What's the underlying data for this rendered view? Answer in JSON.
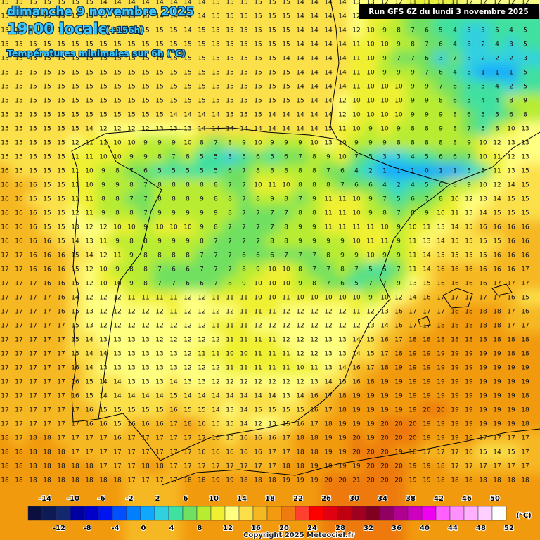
{
  "header": {
    "date": "dimanche 9 novembre 2025",
    "time": "19:00 locale",
    "lead": "(+156h)",
    "subtitle": "Températures minimales sur 6h (°C)",
    "run": "Run GFS 6Z du lundi 3 novembre 2025",
    "copyright": "Copyright 2025 Meteociel.fr"
  },
  "legend": {
    "unit": "(°C)",
    "colors": [
      "#0a0f40",
      "#0d1a55",
      "#14286e",
      "#0000a0",
      "#0000c8",
      "#0014f0",
      "#0050ff",
      "#0080ff",
      "#10a8ff",
      "#30d0e0",
      "#40e0a0",
      "#70e060",
      "#b8ec30",
      "#f0f030",
      "#ffff80",
      "#fbe04a",
      "#f6b820",
      "#f29a10",
      "#ee7a10",
      "#ff4030",
      "#ff0000",
      "#e00010",
      "#c00010",
      "#a00020",
      "#800020",
      "#900060",
      "#b00090",
      "#d000c0",
      "#f000f0",
      "#ff60ff",
      "#ff90ff",
      "#ffb0ff",
      "#ffd0ff",
      "#ffffff"
    ],
    "top_labels": [
      -14,
      -10,
      -6,
      -2,
      2,
      6,
      10,
      14,
      18,
      22,
      26,
      30,
      34,
      38,
      42,
      46,
      50
    ],
    "bottom_labels": [
      -12,
      -8,
      -4,
      0,
      4,
      8,
      12,
      16,
      20,
      24,
      28,
      32,
      36,
      40,
      44,
      48,
      52
    ]
  },
  "grid": {
    "rows": [
      [
        15,
        15,
        15,
        15,
        15,
        15,
        15,
        14,
        14,
        14,
        14,
        14,
        14,
        14,
        14,
        15,
        15,
        15,
        15,
        15,
        15,
        14,
        14,
        14,
        14,
        13,
        13,
        12,
        12,
        11,
        11,
        11,
        11,
        12,
        12,
        12,
        12,
        12
      ],
      [
        15,
        15,
        15,
        15,
        15,
        15,
        15,
        15,
        15,
        15,
        15,
        14,
        14,
        14,
        14,
        15,
        15,
        15,
        15,
        15,
        15,
        14,
        14,
        14,
        14,
        12,
        11,
        10,
        8,
        7,
        6,
        5,
        5,
        4,
        4,
        4,
        5,
        5
      ],
      [
        15,
        15,
        15,
        15,
        15,
        15,
        15,
        15,
        15,
        15,
        15,
        15,
        15,
        14,
        15,
        15,
        15,
        15,
        15,
        15,
        15,
        14,
        14,
        14,
        14,
        12,
        10,
        9,
        8,
        7,
        6,
        5,
        4,
        3,
        3,
        5,
        4,
        5
      ],
      [
        15,
        15,
        15,
        15,
        15,
        15,
        15,
        15,
        15,
        15,
        15,
        15,
        15,
        15,
        15,
        15,
        15,
        15,
        15,
        15,
        15,
        14,
        14,
        14,
        14,
        11,
        10,
        10,
        9,
        8,
        7,
        6,
        4,
        3,
        2,
        4,
        3,
        5
      ],
      [
        15,
        15,
        15,
        15,
        15,
        15,
        15,
        15,
        15,
        15,
        15,
        15,
        15,
        15,
        15,
        15,
        15,
        15,
        15,
        15,
        14,
        14,
        14,
        14,
        14,
        11,
        10,
        9,
        7,
        7,
        6,
        3,
        7,
        3,
        2,
        2,
        2,
        3
      ],
      [
        15,
        15,
        15,
        15,
        15,
        15,
        15,
        15,
        15,
        15,
        15,
        15,
        15,
        15,
        15,
        15,
        15,
        15,
        15,
        15,
        15,
        14,
        14,
        14,
        14,
        11,
        10,
        9,
        9,
        9,
        7,
        6,
        4,
        3,
        1,
        1,
        1,
        5
      ],
      [
        15,
        15,
        15,
        15,
        15,
        15,
        15,
        15,
        15,
        15,
        15,
        15,
        15,
        15,
        15,
        15,
        15,
        15,
        15,
        15,
        15,
        14,
        14,
        14,
        14,
        11,
        10,
        10,
        10,
        9,
        9,
        7,
        6,
        5,
        5,
        4,
        2,
        5
      ],
      [
        15,
        15,
        15,
        15,
        15,
        15,
        15,
        15,
        15,
        15,
        15,
        15,
        15,
        15,
        15,
        15,
        15,
        15,
        15,
        15,
        15,
        15,
        14,
        14,
        12,
        10,
        10,
        10,
        10,
        9,
        9,
        8,
        6,
        5,
        4,
        4,
        8,
        9
      ],
      [
        15,
        15,
        15,
        15,
        15,
        15,
        15,
        15,
        15,
        15,
        15,
        15,
        14,
        14,
        14,
        14,
        15,
        15,
        15,
        14,
        14,
        14,
        14,
        14,
        12,
        10,
        10,
        10,
        10,
        9,
        9,
        9,
        8,
        6,
        5,
        5,
        6,
        8
      ],
      [
        15,
        15,
        15,
        15,
        15,
        15,
        14,
        12,
        12,
        12,
        12,
        13,
        13,
        13,
        14,
        14,
        14,
        14,
        14,
        14,
        14,
        14,
        14,
        15,
        11,
        10,
        9,
        10,
        9,
        8,
        8,
        9,
        8,
        7,
        5,
        8,
        10,
        13
      ],
      [
        15,
        15,
        15,
        15,
        15,
        12,
        11,
        11,
        10,
        10,
        9,
        9,
        9,
        10,
        8,
        7,
        8,
        9,
        10,
        9,
        9,
        9,
        10,
        13,
        10,
        9,
        9,
        9,
        8,
        8,
        8,
        8,
        8,
        9,
        10,
        12,
        13,
        13
      ],
      [
        15,
        15,
        15,
        15,
        15,
        11,
        11,
        10,
        10,
        9,
        9,
        8,
        7,
        8,
        5,
        5,
        3,
        5,
        6,
        5,
        6,
        7,
        8,
        9,
        10,
        7,
        5,
        3,
        3,
        4,
        5,
        6,
        6,
        7,
        10,
        11,
        12,
        13
      ],
      [
        16,
        15,
        15,
        15,
        15,
        11,
        10,
        9,
        8,
        7,
        6,
        5,
        5,
        5,
        5,
        5,
        6,
        7,
        8,
        8,
        8,
        8,
        8,
        7,
        6,
        4,
        2,
        1,
        1,
        1,
        0,
        1,
        1,
        3,
        5,
        11,
        13,
        15
      ],
      [
        16,
        16,
        16,
        15,
        15,
        11,
        10,
        9,
        9,
        8,
        7,
        8,
        8,
        8,
        8,
        8,
        7,
        7,
        10,
        11,
        10,
        8,
        8,
        8,
        7,
        6,
        6,
        4,
        2,
        4,
        5,
        6,
        8,
        9,
        10,
        12,
        14,
        15
      ],
      [
        16,
        16,
        15,
        15,
        15,
        11,
        11,
        8,
        8,
        7,
        7,
        8,
        8,
        8,
        9,
        8,
        8,
        7,
        8,
        9,
        8,
        7,
        9,
        11,
        11,
        10,
        9,
        7,
        5,
        6,
        7,
        8,
        10,
        12,
        13,
        14,
        15,
        15
      ],
      [
        16,
        16,
        16,
        15,
        15,
        12,
        11,
        9,
        8,
        8,
        7,
        9,
        9,
        9,
        9,
        9,
        8,
        7,
        7,
        7,
        7,
        8,
        8,
        11,
        11,
        10,
        9,
        8,
        7,
        8,
        9,
        10,
        11,
        13,
        14,
        15,
        15,
        15
      ],
      [
        16,
        16,
        16,
        15,
        15,
        13,
        12,
        12,
        10,
        10,
        9,
        10,
        10,
        10,
        9,
        8,
        7,
        7,
        7,
        7,
        8,
        9,
        9,
        11,
        11,
        11,
        11,
        10,
        9,
        10,
        11,
        13,
        14,
        15,
        16,
        16,
        16,
        16
      ],
      [
        16,
        16,
        16,
        16,
        15,
        14,
        13,
        11,
        9,
        8,
        8,
        9,
        9,
        9,
        8,
        7,
        7,
        7,
        7,
        8,
        8,
        9,
        9,
        9,
        9,
        10,
        11,
        11,
        9,
        11,
        13,
        14,
        15,
        15,
        15,
        15,
        16,
        16
      ],
      [
        17,
        17,
        16,
        16,
        16,
        15,
        14,
        12,
        11,
        9,
        8,
        8,
        8,
        8,
        7,
        7,
        7,
        6,
        6,
        6,
        7,
        7,
        7,
        8,
        9,
        9,
        10,
        9,
        9,
        11,
        14,
        15,
        15,
        15,
        15,
        16,
        16,
        16
      ],
      [
        17,
        17,
        16,
        16,
        16,
        15,
        12,
        10,
        9,
        8,
        8,
        7,
        6,
        6,
        7,
        7,
        7,
        8,
        9,
        10,
        10,
        8,
        7,
        7,
        8,
        7,
        5,
        5,
        7,
        11,
        14,
        16,
        16,
        16,
        16,
        16,
        16,
        17
      ],
      [
        17,
        17,
        17,
        16,
        16,
        15,
        12,
        10,
        10,
        9,
        8,
        7,
        7,
        6,
        6,
        7,
        8,
        9,
        10,
        10,
        10,
        9,
        8,
        7,
        6,
        5,
        7,
        7,
        9,
        13,
        15,
        16,
        16,
        16,
        16,
        17,
        17,
        17
      ],
      [
        17,
        17,
        17,
        17,
        16,
        14,
        12,
        12,
        12,
        11,
        11,
        11,
        11,
        12,
        12,
        11,
        11,
        11,
        10,
        10,
        11,
        10,
        10,
        10,
        10,
        10,
        9,
        10,
        12,
        14,
        16,
        17,
        17,
        17,
        17,
        17,
        16,
        15
      ],
      [
        17,
        17,
        17,
        17,
        16,
        15,
        13,
        12,
        12,
        12,
        12,
        12,
        11,
        12,
        12,
        12,
        12,
        11,
        11,
        11,
        12,
        12,
        12,
        12,
        12,
        11,
        12,
        13,
        16,
        17,
        17,
        17,
        18,
        18,
        18,
        18,
        17,
        16
      ],
      [
        17,
        17,
        17,
        17,
        17,
        15,
        13,
        12,
        12,
        12,
        12,
        12,
        12,
        12,
        12,
        11,
        11,
        11,
        12,
        12,
        12,
        12,
        12,
        12,
        12,
        12,
        13,
        14,
        16,
        17,
        17,
        18,
        18,
        18,
        18,
        18,
        17,
        17
      ],
      [
        17,
        17,
        17,
        17,
        17,
        15,
        14,
        13,
        13,
        13,
        13,
        12,
        12,
        12,
        12,
        12,
        11,
        11,
        11,
        11,
        12,
        12,
        12,
        13,
        13,
        14,
        15,
        16,
        17,
        18,
        18,
        18,
        18,
        18,
        18,
        18,
        18,
        18
      ],
      [
        17,
        17,
        17,
        17,
        17,
        15,
        14,
        14,
        13,
        13,
        13,
        13,
        13,
        12,
        11,
        11,
        10,
        10,
        11,
        11,
        11,
        12,
        12,
        13,
        13,
        14,
        15,
        17,
        18,
        19,
        19,
        19,
        19,
        19,
        19,
        19,
        18,
        18
      ],
      [
        17,
        17,
        17,
        17,
        17,
        16,
        14,
        13,
        13,
        13,
        13,
        13,
        13,
        12,
        12,
        12,
        11,
        11,
        11,
        11,
        11,
        10,
        11,
        13,
        14,
        16,
        17,
        18,
        19,
        19,
        19,
        19,
        19,
        19,
        19,
        19,
        19,
        19
      ],
      [
        17,
        17,
        17,
        17,
        17,
        16,
        15,
        14,
        14,
        13,
        13,
        13,
        14,
        13,
        13,
        12,
        12,
        12,
        12,
        12,
        12,
        12,
        13,
        14,
        15,
        16,
        18,
        19,
        19,
        19,
        19,
        19,
        19,
        19,
        19,
        19,
        19,
        19
      ],
      [
        17,
        17,
        17,
        17,
        17,
        16,
        15,
        14,
        14,
        14,
        14,
        14,
        15,
        14,
        14,
        14,
        14,
        14,
        14,
        14,
        13,
        14,
        16,
        17,
        18,
        19,
        19,
        19,
        19,
        19,
        19,
        19,
        19,
        19,
        19,
        19,
        19,
        18
      ],
      [
        17,
        17,
        17,
        17,
        17,
        17,
        16,
        15,
        15,
        15,
        15,
        15,
        16,
        15,
        15,
        14,
        13,
        14,
        15,
        15,
        15,
        15,
        16,
        17,
        18,
        19,
        19,
        19,
        19,
        19,
        20,
        20,
        19,
        19,
        19,
        19,
        19,
        18
      ],
      [
        17,
        17,
        17,
        17,
        17,
        17,
        16,
        16,
        15,
        16,
        16,
        16,
        17,
        18,
        16,
        15,
        15,
        14,
        12,
        13,
        15,
        16,
        17,
        18,
        19,
        19,
        19,
        20,
        20,
        20,
        19,
        19,
        19,
        19,
        19,
        19,
        19,
        18
      ],
      [
        18,
        17,
        18,
        18,
        17,
        17,
        17,
        17,
        16,
        17,
        17,
        17,
        17,
        17,
        17,
        16,
        15,
        16,
        16,
        16,
        17,
        18,
        18,
        19,
        19,
        20,
        19,
        20,
        20,
        20,
        19,
        19,
        19,
        18,
        17,
        17,
        17,
        17
      ],
      [
        18,
        18,
        18,
        18,
        18,
        17,
        17,
        17,
        17,
        17,
        17,
        17,
        17,
        17,
        16,
        16,
        16,
        16,
        16,
        17,
        17,
        18,
        18,
        19,
        19,
        20,
        20,
        20,
        19,
        18,
        17,
        17,
        17,
        16,
        15,
        14,
        15,
        17
      ],
      [
        18,
        18,
        18,
        18,
        18,
        18,
        18,
        17,
        17,
        17,
        18,
        18,
        17,
        17,
        17,
        17,
        17,
        17,
        17,
        17,
        18,
        18,
        19,
        19,
        19,
        19,
        20,
        20,
        20,
        19,
        19,
        18,
        17,
        17,
        17,
        17,
        17,
        17
      ],
      [
        18,
        18,
        18,
        18,
        18,
        18,
        18,
        18,
        18,
        17,
        17,
        17,
        17,
        18,
        18,
        19,
        19,
        18,
        18,
        18,
        19,
        19,
        19,
        20,
        20,
        21,
        20,
        20,
        20,
        19,
        19,
        18,
        18,
        18,
        18,
        18,
        18,
        18
      ]
    ]
  }
}
